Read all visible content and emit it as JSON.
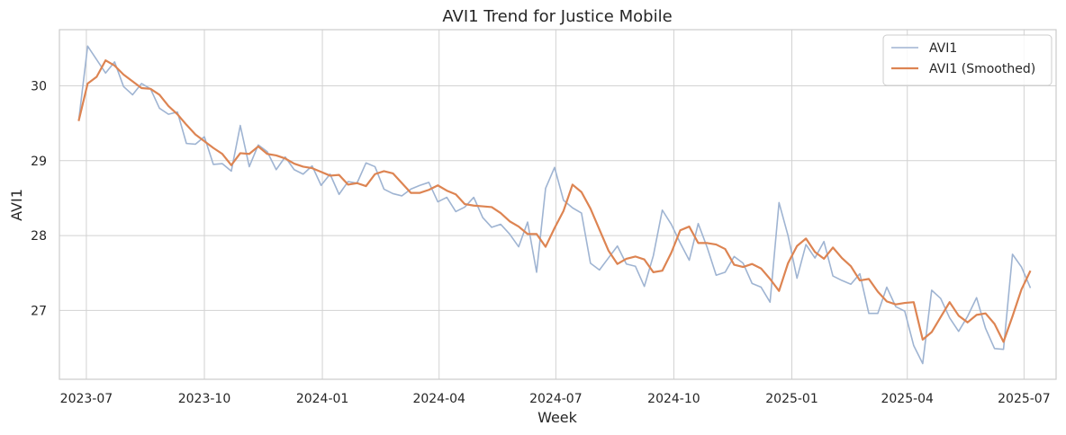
{
  "chart_data": {
    "type": "line",
    "title": "AVI1 Trend for Justice Mobile",
    "xlabel": "Week",
    "ylabel": "AVI1",
    "x_ticks": [
      "2023-07",
      "2023-10",
      "2024-01",
      "2024-04",
      "2024-07",
      "2024-10",
      "2025-01",
      "2025-04",
      "2025-07"
    ],
    "y_ticks": [
      27,
      28,
      29,
      30
    ],
    "xlim": [
      "2023-06-10",
      "2025-07-26"
    ],
    "ylim": [
      26.08,
      30.75
    ],
    "grid": true,
    "legend_position": "top-right",
    "colors": {
      "raw": "#9fb4d2",
      "smoothed": "#dd8452",
      "grid": "#d2d2d2",
      "frame": "#cccccc"
    },
    "start_date": "2023-06-25",
    "week_step_days": 7,
    "series": [
      {
        "name": "AVI1",
        "values": [
          29.53,
          30.53,
          30.35,
          30.17,
          30.32,
          29.99,
          29.88,
          30.03,
          29.96,
          29.7,
          29.62,
          29.65,
          29.23,
          29.22,
          29.32,
          28.95,
          28.96,
          28.86,
          29.47,
          28.92,
          29.21,
          29.12,
          28.88,
          29.05,
          28.88,
          28.82,
          28.93,
          28.67,
          28.82,
          28.55,
          28.72,
          28.7,
          28.97,
          28.92,
          28.62,
          28.56,
          28.53,
          28.62,
          28.67,
          28.71,
          28.45,
          28.51,
          28.32,
          28.38,
          28.51,
          28.24,
          28.11,
          28.15,
          28.02,
          27.85,
          28.18,
          27.51,
          28.63,
          28.91,
          28.47,
          28.37,
          28.3,
          27.63,
          27.54,
          27.7,
          27.86,
          27.62,
          27.59,
          27.32,
          27.73,
          28.34,
          28.15,
          27.9,
          27.67,
          28.16,
          27.84,
          27.47,
          27.51,
          27.72,
          27.63,
          27.36,
          27.31,
          27.11,
          28.44,
          28.0,
          27.43,
          27.88,
          27.7,
          27.92,
          27.46,
          27.4,
          27.35,
          27.49,
          26.96,
          26.96,
          27.31,
          27.05,
          26.99,
          26.53,
          26.29,
          27.27,
          27.16,
          26.9,
          26.72,
          26.92,
          27.17,
          26.76,
          26.49,
          26.48,
          27.75,
          27.58,
          27.3
        ],
        "color": "#9fb4d2"
      },
      {
        "name": "AVI1 (Smoothed)",
        "values": [
          29.53,
          30.03,
          30.12,
          30.34,
          30.27,
          30.15,
          30.06,
          29.97,
          29.96,
          29.88,
          29.73,
          29.62,
          29.48,
          29.35,
          29.26,
          29.17,
          29.09,
          28.94,
          29.1,
          29.09,
          29.19,
          29.09,
          29.07,
          29.03,
          28.96,
          28.92,
          28.9,
          28.85,
          28.8,
          28.81,
          28.68,
          28.7,
          28.66,
          28.82,
          28.86,
          28.83,
          28.7,
          28.57,
          28.57,
          28.61,
          28.67,
          28.6,
          28.55,
          28.42,
          28.4,
          28.39,
          28.38,
          28.3,
          28.19,
          28.12,
          28.02,
          28.02,
          27.85,
          28.1,
          28.33,
          28.68,
          28.58,
          28.36,
          28.08,
          27.8,
          27.62,
          27.69,
          27.72,
          27.68,
          27.51,
          27.53,
          27.77,
          28.07,
          28.12,
          27.9,
          27.9,
          27.88,
          27.82,
          27.61,
          27.58,
          27.62,
          27.56,
          27.42,
          27.26,
          27.63,
          27.86,
          27.96,
          27.78,
          27.69,
          27.84,
          27.7,
          27.59,
          27.4,
          27.42,
          27.25,
          27.12,
          27.08,
          27.1,
          27.11,
          26.61,
          26.71,
          26.91,
          27.11,
          26.93,
          26.84,
          26.94,
          26.96,
          26.82,
          26.58,
          26.92,
          27.28,
          27.53
        ],
        "color": "#dd8452"
      }
    ]
  }
}
